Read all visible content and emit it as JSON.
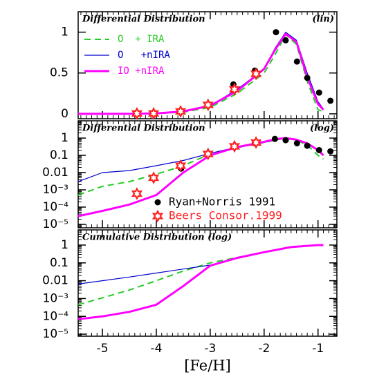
{
  "chart_data": [
    {
      "type": "line",
      "title": "Differential Distribution",
      "annotation": "(lin)",
      "xlim": [
        -5.45,
        -0.65
      ],
      "xticks": [
        -5,
        -4,
        -3,
        -2,
        -1
      ],
      "show_xtick_labels": false,
      "ylim": [
        -0.06,
        1.25
      ],
      "yticks": [
        0,
        0.5,
        1
      ],
      "yscale": "linear",
      "legend": "upper left",
      "series": [
        {
          "name": "O  + IRA",
          "color": "#22cc22",
          "style": "dashed",
          "width": 2,
          "x": [
            -5.45,
            -5,
            -4.5,
            -4,
            -3.5,
            -3,
            -2.5,
            -2,
            -1.8,
            -1.6,
            -1.4,
            -1.2,
            -1,
            -0.9
          ],
          "values": [
            0,
            0,
            0,
            0.005,
            0.02,
            0.08,
            0.25,
            0.5,
            0.72,
            0.97,
            0.85,
            0.4,
            0.05,
            0.03
          ]
        },
        {
          "name": "O   +nIRA",
          "color": "#0000cc",
          "style": "solid",
          "width": 1.2,
          "x": [
            -5.45,
            -5,
            -4.5,
            -4,
            -3.5,
            -3,
            -2.5,
            -2,
            -1.8,
            -1.6,
            -1.4,
            -1.2,
            -1,
            -0.9
          ],
          "values": [
            0,
            0,
            0,
            0.005,
            0.025,
            0.1,
            0.3,
            0.55,
            0.8,
            1.0,
            0.9,
            0.5,
            0.15,
            0.06
          ]
        },
        {
          "name": "IO +nIRA",
          "color": "#ff00ff",
          "style": "solid",
          "width": 3,
          "x": [
            -5.45,
            -5,
            -4.5,
            -4,
            -3.5,
            -3,
            -2.5,
            -2,
            -1.8,
            -1.6,
            -1.4,
            -1.2,
            -1,
            -0.9
          ],
          "values": [
            0,
            0,
            0,
            0.005,
            0.03,
            0.1,
            0.28,
            0.55,
            0.78,
            0.98,
            0.88,
            0.45,
            0.12,
            0.05
          ]
        },
        {
          "type": "scatter",
          "marker": "circle",
          "color": "#000000",
          "x": [
            -4.37,
            -4.05,
            -3.54,
            -3.04,
            -2.57,
            -2.17,
            -1.78,
            -1.6,
            -1.39,
            -1.2,
            -0.98,
            -0.77
          ],
          "values": [
            0.005,
            0.005,
            0.03,
            0.11,
            0.36,
            0.53,
            1.0,
            0.9,
            0.64,
            0.44,
            0.26,
            0.16
          ]
        },
        {
          "type": "scatter",
          "marker": "star",
          "color": "#ff2020",
          "x": [
            -4.36,
            -4.05,
            -3.55,
            -3.04,
            -2.55,
            -2.15
          ],
          "values": [
            0.005,
            0.005,
            0.03,
            0.11,
            0.3,
            0.49
          ]
        }
      ]
    },
    {
      "type": "line",
      "title": "Differential Distribution",
      "annotation": "(log)",
      "xlim": [
        -5.45,
        -0.65
      ],
      "xticks": [
        -5,
        -4,
        -3,
        -2,
        -1
      ],
      "show_xtick_labels": false,
      "ylim": [
        6.3e-06,
        10
      ],
      "yscale": "log",
      "legend": "lower right",
      "yticks": [
        1,
        0.1,
        0.01,
        {
          "value": 0.001,
          "label": "10⁻³"
        },
        {
          "value": 0.0001,
          "label": "10⁻⁴"
        },
        {
          "value": 1e-05,
          "label": "10⁻⁵"
        }
      ],
      "series": [
        {
          "color": "#22cc22",
          "style": "dashed",
          "width": 2,
          "x": [
            -5.45,
            -5,
            -4.5,
            -4,
            -3.5,
            -3,
            -2.5,
            -2,
            -1.8,
            -1.6,
            -1.4,
            -1.2,
            -1,
            -0.9
          ],
          "values": [
            0.0005,
            0.0016,
            0.003,
            0.008,
            0.025,
            0.12,
            0.28,
            0.55,
            0.75,
            0.98,
            0.75,
            0.4,
            0.1,
            0.06
          ]
        },
        {
          "color": "#0000cc",
          "style": "solid",
          "width": 1.2,
          "x": [
            -5.45,
            -5,
            -4.5,
            -4,
            -3.5,
            -3,
            -2.5,
            -2,
            -1.8,
            -1.6,
            -1.4,
            -1.2,
            -1,
            -0.9
          ],
          "values": [
            0.003,
            0.01,
            0.013,
            0.025,
            0.05,
            0.13,
            0.3,
            0.6,
            0.85,
            1,
            0.8,
            0.5,
            0.2,
            0.1
          ]
        },
        {
          "color": "#ff00ff",
          "style": "solid",
          "width": 3,
          "x": [
            -5.45,
            -5,
            -4.5,
            -4,
            -3.5,
            -3,
            -2.5,
            -2,
            -1.8,
            -1.6,
            -1.4,
            -1.2,
            -1,
            -0.9
          ],
          "values": [
            3e-05,
            6e-05,
            0.00014,
            0.0005,
            0.01,
            0.1,
            0.3,
            0.6,
            0.85,
            1,
            0.8,
            0.5,
            0.2,
            0.1
          ]
        },
        {
          "type": "scatter",
          "marker": "circle",
          "color": "#000000",
          "name": "Ryan+Norris 1991",
          "x": [
            -3.54,
            -3.04,
            -2.55,
            -2.17,
            -1.8,
            -1.6,
            -1.39,
            -1.2,
            -0.98,
            -0.77
          ],
          "values": [
            0.017,
            0.12,
            0.33,
            0.5,
            0.9,
            0.75,
            0.5,
            0.36,
            0.2,
            0.17
          ]
        },
        {
          "type": "scatter",
          "marker": "star",
          "color": "#ff2020",
          "name": "Beers Consor.1999",
          "x": [
            -4.36,
            -4.05,
            -3.55,
            -3.04,
            -2.55,
            -2.15
          ],
          "values": [
            0.0006,
            0.005,
            0.025,
            0.12,
            0.33,
            0.55
          ]
        }
      ]
    },
    {
      "type": "line",
      "title": "Cumulative Distribution (log)",
      "xlim": [
        -5.45,
        -0.65
      ],
      "xticks": [
        -5,
        -4,
        -3,
        -2,
        -1
      ],
      "show_xtick_labels": true,
      "xlabel": "[Fe/H]",
      "ylim": [
        7.7e-06,
        7.1
      ],
      "yscale": "log",
      "yticks": [
        1,
        0.1,
        0.01,
        {
          "value": 0.001,
          "label": "10⁻³"
        },
        {
          "value": 0.0001,
          "label": "10⁻⁴"
        },
        {
          "value": 1e-05,
          "label": "10⁻⁵"
        }
      ],
      "series": [
        {
          "color": "#22cc22",
          "style": "dashed",
          "width": 2,
          "x": [
            -5.45,
            -5,
            -4.5,
            -4,
            -3.5,
            -3,
            -2.5,
            -2,
            -1.5,
            -1,
            -0.9
          ],
          "values": [
            0.00045,
            0.0011,
            0.003,
            0.01,
            0.035,
            0.1,
            0.2,
            0.4,
            0.77,
            1,
            1
          ]
        },
        {
          "color": "#0000cc",
          "style": "solid",
          "width": 1.2,
          "x": [
            -5.45,
            -5,
            -4.5,
            -4,
            -3.5,
            -3,
            -2.5,
            -2,
            -1.5,
            -1,
            -0.9
          ],
          "values": [
            0.0065,
            0.01,
            0.016,
            0.027,
            0.045,
            0.075,
            0.19,
            0.38,
            0.77,
            1,
            1
          ]
        },
        {
          "color": "#ff00ff",
          "style": "solid",
          "width": 3,
          "x": [
            -5.45,
            -5,
            -4.5,
            -4,
            -3.5,
            -3,
            -2.5,
            -2,
            -1.5,
            -1,
            -0.9
          ],
          "values": [
            7e-05,
            0.0001,
            0.00018,
            0.00045,
            0.005,
            0.07,
            0.19,
            0.4,
            0.77,
            1,
            1
          ]
        }
      ]
    }
  ]
}
